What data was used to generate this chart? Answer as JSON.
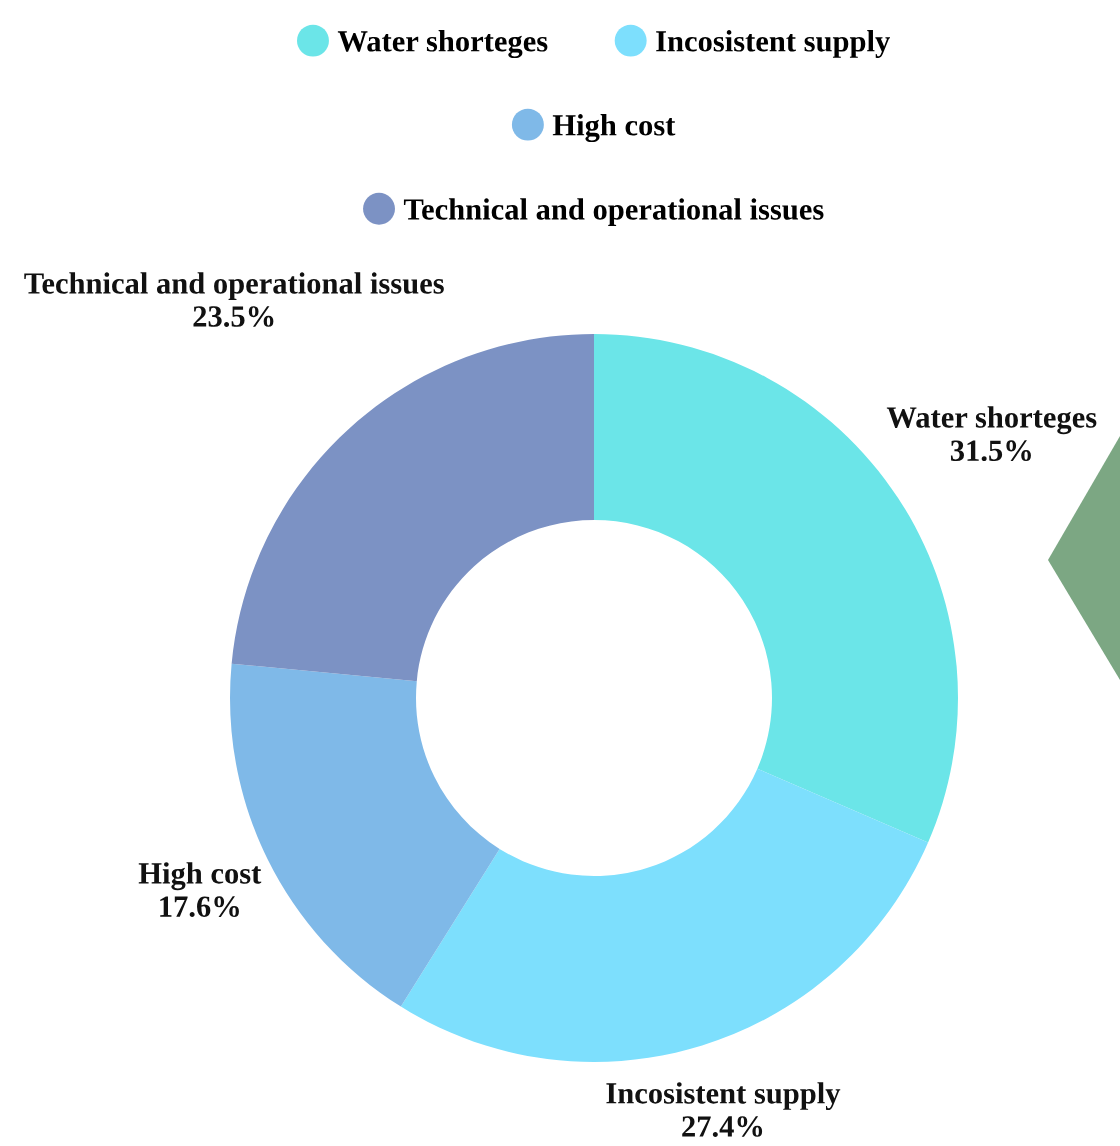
{
  "chart_data": {
    "type": "donut",
    "categories": [
      "Water shorteges",
      "Incosistent supply",
      "High cost",
      "Technical and operational issues"
    ],
    "values": [
      31.5,
      27.4,
      17.6,
      23.5
    ],
    "value_labels": [
      "31.5%",
      "27.4%",
      "17.6%",
      "23.5%"
    ],
    "colors": [
      "#6be5e8",
      "#7ddffd",
      "#7fb9e8",
      "#7c92c4"
    ],
    "legend": "top"
  }
}
